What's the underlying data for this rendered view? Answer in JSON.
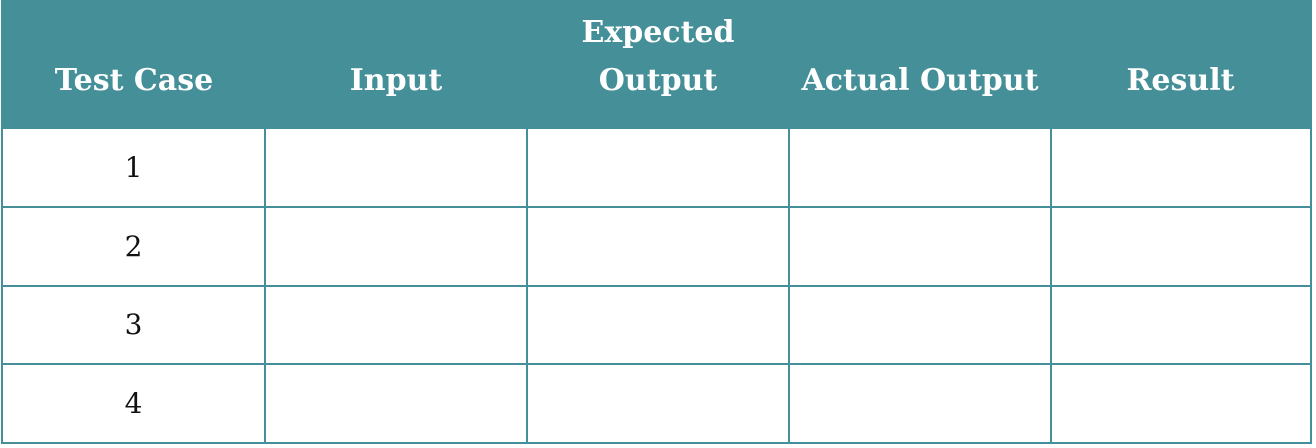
{
  "table": {
    "header_color": "#448f98",
    "border_color": "#448f98",
    "columns": [
      "Test Case",
      "Input",
      "Expected Output",
      "Actual Output",
      "Result"
    ],
    "rows": [
      [
        "1",
        "",
        "",
        "",
        ""
      ],
      [
        "2",
        "",
        "",
        "",
        ""
      ],
      [
        "3",
        "",
        "",
        "",
        ""
      ],
      [
        "4",
        "",
        "",
        "",
        ""
      ]
    ]
  }
}
